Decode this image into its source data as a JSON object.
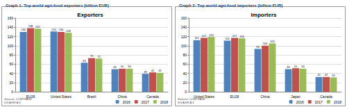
{
  "chart_data": [
    {
      "type": "bar",
      "title": "Graph 1: Top world agri-food exporters (billion EUR)",
      "subtitle": "Exporters",
      "annotations": [
        "Sources: COMTRADE",
        "DG AGRI A.3"
      ],
      "categories": [
        "EU28",
        "United States",
        "Brazil",
        "China",
        "Canada"
      ],
      "series": [
        {
          "name": "2016",
          "color": "#4F81BD",
          "values": [
            130,
            131,
            63,
            49,
            39
          ]
        },
        {
          "name": "2017",
          "color": "#C0504D",
          "values": [
            138,
            130,
            73,
            50,
            42
          ]
        },
        {
          "name": "2018",
          "color": "#9BBB59",
          "values": [
            137,
            128,
            72,
            50,
            41
          ]
        }
      ],
      "ylim": [
        0,
        160
      ],
      "yticks": [
        0,
        20,
        40,
        60,
        80,
        100,
        120,
        140,
        160
      ],
      "grid": true,
      "legend": "bottom-right",
      "data_labels": true
    },
    {
      "type": "bar",
      "title": "Graph 2: Top world agri-food importers (billion EUR)",
      "subtitle": "Importers",
      "annotations": [
        "Sources: COMTRADE",
        "DG AGRI A.3"
      ],
      "categories": [
        "United States",
        "EU28",
        "China",
        "Japan",
        "Canada"
      ],
      "series": [
        {
          "name": "2016",
          "color": "#4F81BD",
          "values": [
            112,
            111,
            93,
            49,
            32
          ]
        },
        {
          "name": "2017",
          "color": "#C0504D",
          "values": [
            117,
            117,
            100,
            51,
            32
          ]
        },
        {
          "name": "2018",
          "color": "#9BBB59",
          "values": [
            119,
            116,
            105,
            50,
            31
          ]
        }
      ],
      "ylim": [
        0,
        160
      ],
      "yticks": [
        0,
        20,
        40,
        60,
        80,
        100,
        120,
        140,
        160
      ],
      "grid": true,
      "legend": "bottom-right",
      "data_labels": true
    }
  ]
}
